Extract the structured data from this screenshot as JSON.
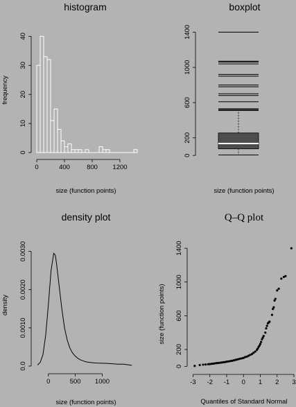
{
  "chart_data": [
    {
      "type": "bar",
      "title": "histogram",
      "xlabel": "size (function points)",
      "ylabel": "frequency",
      "xlim": [
        -50,
        1450
      ],
      "ylim": [
        0,
        42
      ],
      "x_ticks": [
        0,
        400,
        800,
        1200
      ],
      "x_tick_labels": [
        "0",
        "400",
        "800",
        "1200"
      ],
      "y_ticks": [
        0,
        10,
        20,
        30,
        40
      ],
      "y_tick_labels": [
        "0",
        "10",
        "20",
        "30",
        "40"
      ],
      "bin_width": 50,
      "bin_starts": [
        0,
        50,
        100,
        150,
        200,
        250,
        300,
        350,
        400,
        450,
        500,
        550,
        600,
        650,
        700,
        750,
        800,
        850,
        900,
        950,
        1000,
        1050,
        1100,
        1150,
        1200,
        1250,
        1300,
        1350,
        1400
      ],
      "values": [
        30,
        40,
        33,
        32,
        11,
        15,
        8,
        4,
        2,
        3,
        1,
        1,
        1,
        0,
        1,
        0,
        0,
        0,
        2,
        1,
        1,
        0,
        0,
        0,
        0,
        0,
        0,
        0,
        1
      ]
    },
    {
      "type": "boxplot",
      "title": "boxplot",
      "xlabel": "size (function points)",
      "ylim": [
        -30,
        1450
      ],
      "y_ticks": [
        0,
        200,
        600,
        1000,
        1400
      ],
      "y_tick_labels": [
        "0",
        "200",
        "600",
        "1000",
        "1400"
      ],
      "whisker_low": 5,
      "q1": 75,
      "median": 135,
      "q3": 255,
      "whisker_high": 510,
      "outliers": [
        520,
        530,
        610,
        680,
        700,
        780,
        800,
        900,
        920,
        1040,
        1060,
        1070,
        1400
      ]
    },
    {
      "type": "line",
      "title": "density plot",
      "xlabel": "size (function points)",
      "ylabel": "density",
      "xlim": [
        -280,
        1650
      ],
      "ylim": [
        0,
        0.0033
      ],
      "x_ticks": [
        0,
        500,
        1000
      ],
      "x_tick_labels": [
        "0",
        "500",
        "1000"
      ],
      "y_ticks": [
        0,
        0.001,
        0.002,
        0.003
      ],
      "y_tick_labels": [
        "0.0",
        "0.0010",
        "0.0020",
        "0.0030"
      ],
      "x": [
        -200,
        -150,
        -100,
        -50,
        0,
        50,
        100,
        130,
        150,
        200,
        250,
        300,
        350,
        400,
        450,
        500,
        550,
        600,
        700,
        800,
        900,
        1000,
        1100,
        1200,
        1300,
        1400,
        1500,
        1550
      ],
      "y": [
        3e-05,
        0.0001,
        0.0003,
        0.0008,
        0.0016,
        0.0025,
        0.00295,
        0.0029,
        0.0027,
        0.0021,
        0.0015,
        0.001,
        0.00068,
        0.00047,
        0.00034,
        0.00026,
        0.0002,
        0.00016,
        0.00011,
        9e-05,
        8e-05,
        7.5e-05,
        7e-05,
        6e-05,
        5e-05,
        5e-05,
        3e-05,
        2e-05
      ]
    },
    {
      "type": "scatter",
      "title": "Q–Q plot",
      "xlabel": "Quantiles of Standard Normal",
      "ylabel": "size (function points)",
      "xlim": [
        -3.1,
        3.0
      ],
      "ylim": [
        -30,
        1450
      ],
      "x_ticks": [
        -3,
        -2,
        -1,
        0,
        1,
        2,
        3
      ],
      "x_tick_labels": [
        "-3",
        "-2",
        "-1",
        "0",
        "1",
        "2",
        "3"
      ],
      "y_ticks": [
        0,
        200,
        600,
        1000,
        1400
      ],
      "y_tick_labels": [
        "0",
        "200",
        "600",
        "1000",
        "1400"
      ],
      "points": [
        [
          -2.9,
          5
        ],
        [
          -2.6,
          15
        ],
        [
          -2.4,
          20
        ],
        [
          -2.25,
          22
        ],
        [
          -2.1,
          25
        ],
        [
          -2.0,
          27
        ],
        [
          -1.9,
          30
        ],
        [
          -1.8,
          32
        ],
        [
          -1.7,
          35
        ],
        [
          -1.6,
          38
        ],
        [
          -1.5,
          40
        ],
        [
          -1.4,
          42
        ],
        [
          -1.3,
          45
        ],
        [
          -1.2,
          48
        ],
        [
          -1.1,
          50
        ],
        [
          -1.0,
          55
        ],
        [
          -0.9,
          58
        ],
        [
          -0.8,
          62
        ],
        [
          -0.7,
          65
        ],
        [
          -0.6,
          70
        ],
        [
          -0.5,
          75
        ],
        [
          -0.4,
          80
        ],
        [
          -0.3,
          85
        ],
        [
          -0.2,
          90
        ],
        [
          -0.1,
          95
        ],
        [
          0.0,
          100
        ],
        [
          0.1,
          110
        ],
        [
          0.2,
          115
        ],
        [
          0.3,
          125
        ],
        [
          0.4,
          135
        ],
        [
          0.5,
          145
        ],
        [
          0.6,
          160
        ],
        [
          0.7,
          175
        ],
        [
          0.8,
          195
        ],
        [
          0.85,
          210
        ],
        [
          0.9,
          230
        ],
        [
          0.95,
          245
        ],
        [
          1.0,
          265
        ],
        [
          1.05,
          290
        ],
        [
          1.1,
          320
        ],
        [
          1.15,
          340
        ],
        [
          1.2,
          360
        ],
        [
          1.3,
          400
        ],
        [
          1.35,
          450
        ],
        [
          1.4,
          480
        ],
        [
          1.45,
          510
        ],
        [
          1.5,
          520
        ],
        [
          1.55,
          530
        ],
        [
          1.7,
          610
        ],
        [
          1.75,
          680
        ],
        [
          1.8,
          700
        ],
        [
          1.85,
          780
        ],
        [
          1.9,
          800
        ],
        [
          2.0,
          900
        ],
        [
          2.1,
          920
        ],
        [
          2.25,
          1040
        ],
        [
          2.4,
          1060
        ],
        [
          2.5,
          1070
        ],
        [
          2.85,
          1400
        ]
      ]
    }
  ]
}
